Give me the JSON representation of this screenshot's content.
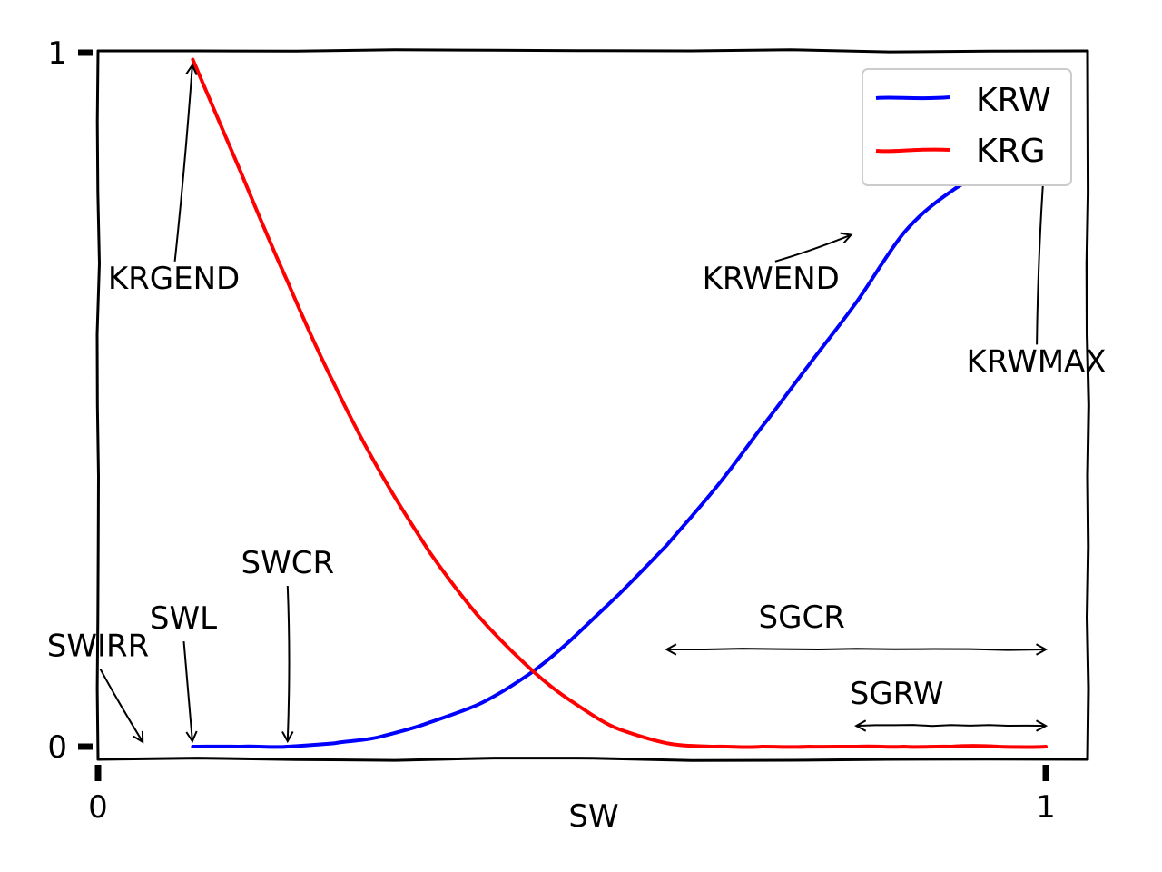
{
  "chart_data": {
    "type": "line",
    "title": "",
    "xlabel": "SW",
    "ylabel": "",
    "xlim": [
      0,
      1
    ],
    "ylim": [
      0,
      1
    ],
    "xticks": [
      0,
      1
    ],
    "xtick_labels": [
      "0",
      "1"
    ],
    "yticks": [
      0,
      1
    ],
    "ytick_labels": [
      "0",
      "1"
    ],
    "grid": false,
    "legend_position": "top-right",
    "style": "xkcd sketch",
    "series": [
      {
        "name": "KRW",
        "color": "#0000ff",
        "x": [
          0.1,
          0.15,
          0.2,
          0.25,
          0.3,
          0.35,
          0.4,
          0.45,
          0.5,
          0.55,
          0.6,
          0.65,
          0.7,
          0.75,
          0.8,
          0.85,
          0.9,
          0.95,
          1.0
        ],
        "y": [
          0.0,
          0.0,
          0.0,
          0.005,
          0.015,
          0.035,
          0.06,
          0.1,
          0.155,
          0.22,
          0.29,
          0.37,
          0.46,
          0.55,
          0.64,
          0.74,
          0.8,
          0.835,
          0.87
        ]
      },
      {
        "name": "KRG",
        "color": "#ff0000",
        "x": [
          0.1,
          0.15,
          0.2,
          0.25,
          0.3,
          0.35,
          0.4,
          0.45,
          0.5,
          0.55,
          0.6,
          0.65,
          0.7,
          0.75,
          0.8,
          0.85,
          0.9,
          0.95,
          1.0
        ],
        "y": [
          0.99,
          0.83,
          0.67,
          0.52,
          0.39,
          0.28,
          0.19,
          0.12,
          0.065,
          0.025,
          0.005,
          0.0,
          0.0,
          0.0,
          0.0,
          0.0,
          0.0,
          0.0,
          0.0
        ]
      }
    ],
    "annotations": [
      {
        "text": "KRGEND",
        "point": [
          0.1,
          0.99
        ],
        "text_at": [
          0.08,
          0.66
        ]
      },
      {
        "text": "KRWEND",
        "point": [
          0.8,
          0.74
        ],
        "text_at": [
          0.71,
          0.66
        ]
      },
      {
        "text": "KRWMAX",
        "point": [
          1.0,
          0.87
        ],
        "text_at": [
          0.99,
          0.54
        ]
      },
      {
        "text": "SWIRR",
        "point": [
          0.05,
          0.0
        ],
        "text_at": [
          0.0,
          0.13
        ]
      },
      {
        "text": "SWL",
        "point": [
          0.1,
          0.0
        ],
        "text_at": [
          0.09,
          0.17
        ]
      },
      {
        "text": "SWCR",
        "point": [
          0.2,
          0.0
        ],
        "text_at": [
          0.2,
          0.25
        ]
      },
      {
        "text": "SGCR",
        "range": [
          0.6,
          1.0
        ],
        "at_y": 0.14
      },
      {
        "text": "SGRW",
        "range": [
          0.8,
          1.0
        ],
        "at_y": 0.03
      }
    ]
  }
}
